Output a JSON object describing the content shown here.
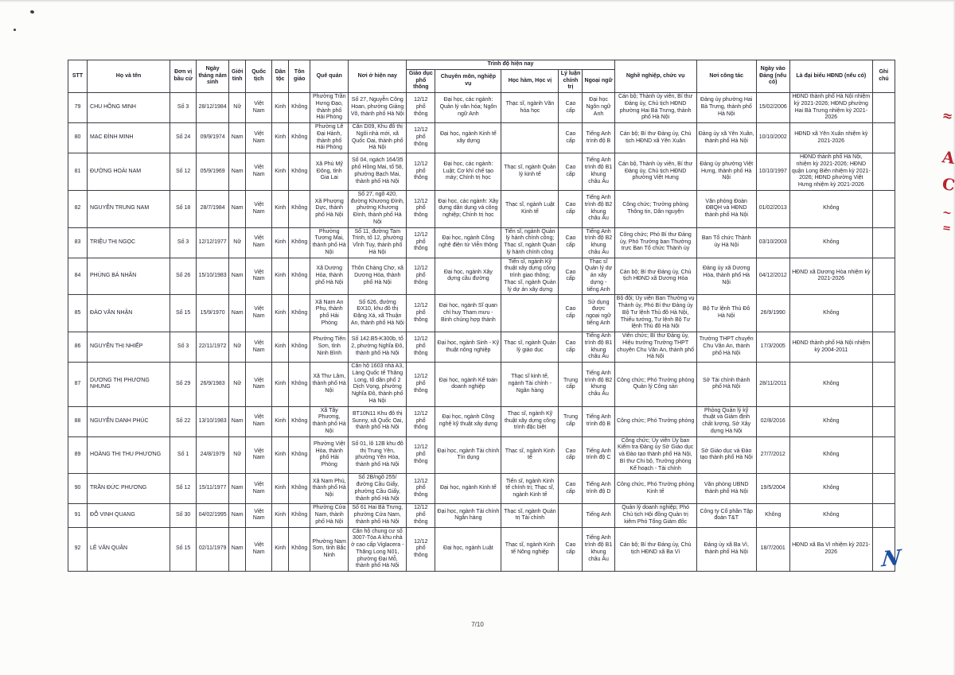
{
  "page": {
    "number": "7/10"
  },
  "annotations": {
    "red_edge_marks": [
      "≈",
      "A",
      "C",
      "~",
      "="
    ],
    "blue_initial": "N"
  },
  "table": {
    "header": {
      "stt": "STT",
      "name": "Họ và tên",
      "unit": "Đơn vị bầu cử",
      "dob": "Ngày tháng năm sinh",
      "gender": "Giới tính",
      "nationality": "Quốc tịch",
      "ethnicity": "Dân tộc",
      "religion": "Tôn giáo",
      "hometown": "Quê quán",
      "residence": "Nơi ở hiện nay",
      "qualification_group": "Trình độ hiện nay",
      "education": "Giáo dục phổ thông",
      "professional": "Chuyên môn, nghiệp vụ",
      "degree": "Học hàm, Học vị",
      "politics": "Lý luận chính trị",
      "language": "Ngoại ngữ",
      "occupation": "Nghề nghiệp, chức vụ",
      "workplace": "Nơi công tác",
      "party_date": "Ngày vào Đảng (nếu có)",
      "council": "Là đại biểu HĐND (nếu có)",
      "note": "Ghi chú"
    },
    "rows": [
      {
        "stt": "79",
        "name": "CHU HỒNG MINH",
        "unit": "Số 3",
        "dob": "28/12/1984",
        "gender": "Nữ",
        "nationality": "Việt Nam",
        "ethnicity": "Kinh",
        "religion": "Không",
        "hometown": "Phường Trần Hưng Đạo, thành phố Hải Phòng",
        "residence": "Số 27, Nguyễn Công Hoan, phường Giảng Võ, thành phố Hà Nội",
        "education": "12/12 phổ thông",
        "professional": "Đại học, các ngành: Quản lý văn hóa; Ngôn ngữ Anh",
        "degree": "Thạc sĩ, ngành Văn hóa học",
        "politics": "Cao cấp",
        "language": "Đại học Ngôn ngữ Anh",
        "occupation": "Cán bộ; Thành ủy viên, Bí thư Đảng ủy, Chủ tịch HĐND phường Hai Bà Trưng, thành phố Hà Nội",
        "workplace": "Đảng ủy phường Hai Bà Trưng, thành phố Hà Nội",
        "party_date": "15/02/2006",
        "council": "HĐND thành phố Hà Nội nhiệm kỳ 2021-2026; HĐND phường Hai Bà Trưng nhiệm kỳ 2021-2026",
        "note": ""
      },
      {
        "stt": "80",
        "name": "MẠC ĐÌNH MINH",
        "unit": "Số 24",
        "dob": "09/9/1974",
        "gender": "Nam",
        "nationality": "Việt Nam",
        "ethnicity": "Kinh",
        "religion": "Không",
        "hometown": "Phường Lê Đại Hành, thành phố Hải Phòng",
        "residence": "Căn D09, Khu đô thị Ngôi nhà mới, xã Quốc Oai, thành phố Hà Nội",
        "education": "12/12 phổ thông",
        "professional": "Đại học, ngành Kinh tế xây dựng",
        "degree": "",
        "politics": "Cao cấp",
        "language": "Tiếng Anh trình độ B",
        "occupation": "Cán bộ; Bí thư Đảng ủy, Chủ tịch HĐND xã Yên Xuân",
        "workplace": "Đảng ủy xã Yên Xuân, thành phố Hà Nội",
        "party_date": "10/10/2002",
        "council": "HĐND xã Yên Xuân nhiệm kỳ 2021-2026",
        "note": ""
      },
      {
        "stt": "81",
        "name": "ĐƯỜNG HOÀI NAM",
        "unit": "Số 12",
        "dob": "05/9/1969",
        "gender": "Nam",
        "nationality": "Việt Nam",
        "ethnicity": "Kinh",
        "religion": "Không",
        "hometown": "Xã Phù Mỹ Đông, tỉnh Gia Lai",
        "residence": "Số 04, ngách 164/35 phố Hồng Mai, tổ 58, phường Bạch Mai, thành phố Hà Nội",
        "education": "12/12 phổ thông",
        "professional": "Đại học, các ngành: Luật; Cơ khí chế tạo máy; Chính trị học",
        "degree": "Thạc sĩ, ngành Quản lý kinh tế",
        "politics": "Cao cấp",
        "language": "Tiếng Anh trình độ B1 khung châu Âu",
        "occupation": "Cán bộ, Thành ủy viên, Bí thư Đảng ủy, Chủ tịch HĐND phường Việt Hưng",
        "workplace": "Đảng ủy phường Việt Hưng, thành phố Hà Nội",
        "party_date": "10/10/1997",
        "council": "HĐND thành phố Hà Nội, nhiệm kỳ 2021-2026; HĐND quận Long Biên nhiệm kỳ 2021-2026; HĐND phường Việt Hưng nhiệm kỳ 2021-2026",
        "note": ""
      },
      {
        "stt": "82",
        "name": "NGUYỄN TRUNG NAM",
        "unit": "Số 18",
        "dob": "28/7/1984",
        "gender": "Nam",
        "nationality": "Việt Nam",
        "ethnicity": "Kinh",
        "religion": "Không",
        "hometown": "Xã Phượng Dực, thành phố Hà Nội",
        "residence": "Số 27, ngõ 420, đường Khương Đình, phường Khương Đình, thành phố Hà Nội",
        "education": "12/12 phổ thông",
        "professional": "Đại học, các ngành: Xây dựng dân dụng và công nghiệp; Chính trị học",
        "degree": "Thạc sĩ, ngành Luật Kinh tế",
        "politics": "Cao cấp",
        "language": "Tiếng Anh trình độ B2 khung châu Âu",
        "occupation": "Công chức; Trưởng phòng Thông tin, Dân nguyện",
        "workplace": "Văn phòng Đoàn ĐBQH và HĐND thành phố Hà Nội",
        "party_date": "01/02/2013",
        "council": "Không",
        "note": ""
      },
      {
        "stt": "83",
        "name": "TRIỆU THỊ NGỌC",
        "unit": "Số 3",
        "dob": "12/12/1977",
        "gender": "Nữ",
        "nationality": "Việt Nam",
        "ethnicity": "Kinh",
        "religion": "Không",
        "hometown": "Phường Tương Mai, thành phố Hà Nội",
        "residence": "Số 11, đường Tam Trinh, tổ 12, phường Vĩnh Tuy, thành phố Hà Nội",
        "education": "12/12 phổ thông",
        "professional": "Đại học, ngành Công nghệ điện tử Viễn thông",
        "degree": "Tiến sĩ, ngành Quản lý hành chính công; Thạc sĩ, ngành Quản lý hành chính công",
        "politics": "Cao cấp",
        "language": "Tiếng Anh trình độ B2 khung châu Âu",
        "occupation": "Công chức; Phó Bí thư Đảng ủy, Phó Trưởng ban Thường trực Ban Tổ chức Thành ủy",
        "workplace": "Ban Tổ chức Thành ủy Hà Nội",
        "party_date": "03/10/2003",
        "council": "Không",
        "note": ""
      },
      {
        "stt": "84",
        "name": "PHÙNG BÁ NHÂN",
        "unit": "Số 26",
        "dob": "15/10/1983",
        "gender": "Nam",
        "nationality": "Việt Nam",
        "ethnicity": "Kinh",
        "religion": "Không",
        "hometown": "Xã Dương Hòa, thành phố Hà Nội",
        "residence": "Thôn Chàng Chợ, xã Dương Hòa, thành phố Hà Nội",
        "education": "12/12 phổ thông",
        "professional": "Đại học, ngành Xây dựng cầu đường",
        "degree": "Tiến sĩ, ngành Kỹ thuật xây dựng công trình giao thông; Thạc sĩ, ngành Quản lý dự án xây dựng",
        "politics": "Cao cấp",
        "language": "Thạc sĩ Quản lý dự án xây dựng - tiếng Anh",
        "occupation": "Cán bộ; Bí thư Đảng ủy, Chủ tịch HĐND xã Dương Hòa",
        "workplace": "Đảng ủy xã Dương Hòa, thành phố Hà Nội",
        "party_date": "04/12/2012",
        "council": "HĐND xã Dương Hòa nhiệm kỳ 2021-2026",
        "note": ""
      },
      {
        "stt": "85",
        "name": "ĐÀO VĂN NHẬN",
        "unit": "Số 15",
        "dob": "15/9/1970",
        "gender": "Nam",
        "nationality": "Việt Nam",
        "ethnicity": "Kinh",
        "religion": "Không",
        "hometown": "Xã Nam An Phụ, thành phố Hải Phòng",
        "residence": "Số 626, đường ĐX10, khu đô thị Đặng Xá, xã Thuận An, thành phố Hà Nội",
        "education": "12/12 phổ thông",
        "professional": "Đại học, ngành Sĩ quan chỉ huy Tham mưu - Binh chủng hợp thành",
        "degree": "",
        "politics": "Cao cấp",
        "language": "Sử dụng được ngoại ngữ tiếng Anh",
        "occupation": "Bộ đội; Ủy viên Ban Thường vụ Thành ủy, Phó Bí thư Đảng ủy Bộ Tư lệnh Thủ đô Hà Nội, Thiếu tướng, Tư lệnh Bộ Tư lệnh Thủ đô Hà Nội",
        "workplace": "Bộ Tư lệnh Thủ Đô Hà Nội",
        "party_date": "26/9/1990",
        "council": "Không",
        "note": ""
      },
      {
        "stt": "86",
        "name": "NGUYỄN THỊ NHIẾP",
        "unit": "Số 3",
        "dob": "22/11/1972",
        "gender": "Nữ",
        "nationality": "Việt Nam",
        "ethnicity": "Kinh",
        "religion": "Không",
        "hometown": "Phường Tiên Sơn, tỉnh Ninh Bình",
        "residence": "Số 142.B5-K300b, tổ 2, phường Nghĩa Đô, thành phố Hà Nội",
        "education": "12/12 phổ thông",
        "professional": "Đại học, ngành Sinh - Kỹ thuật nông nghiệp",
        "degree": "Thạc sĩ, ngành Quản lý giáo dục",
        "politics": "Cao cấp",
        "language": "Tiếng Anh trình độ B1 khung châu Âu",
        "occupation": "Viên chức; Bí thư Đảng ủy, Hiệu trưởng Trường THPT chuyên Chu Văn An, thành phố Hà Nội",
        "workplace": "Trường THPT chuyên Chu Văn An, thành phố Hà Nội",
        "party_date": "17/3/2005",
        "council": "HĐND thành phố Hà Nội nhiệm kỳ 2004-2011",
        "note": ""
      },
      {
        "stt": "87",
        "name": "DƯƠNG THỊ PHƯƠNG NHUNG",
        "unit": "Số 29",
        "dob": "26/9/1983",
        "gender": "Nữ",
        "nationality": "Việt Nam",
        "ethnicity": "Kinh",
        "religion": "Không",
        "hometown": "Xã Thư Lâm, thành phố Hà Nội",
        "residence": "Căn hộ 1603 nhà A3, Làng Quốc tế Thăng Long, tổ dân phố 2 Dịch Vọng, phường Nghĩa Đô, thành phố Hà Nội",
        "education": "12/12 phổ thông",
        "professional": "Đại học, ngành Kế toán doanh nghiệp",
        "degree": "Thạc sĩ kinh tế, ngành Tài chính -Ngân hàng",
        "politics": "Trung cấp",
        "language": "Tiếng Anh trình độ B2 khung châu Âu",
        "occupation": "Công chức; Phó Trưởng phòng Quản lý Công sản",
        "workplace": "Sở Tài chính thành phố Hà Nội",
        "party_date": "28/11/2011",
        "council": "Không",
        "note": ""
      },
      {
        "stt": "88",
        "name": "NGUYỄN DANH PHÚC",
        "unit": "Số 22",
        "dob": "13/10/1983",
        "gender": "Nam",
        "nationality": "Việt Nam",
        "ethnicity": "Kinh",
        "religion": "Không",
        "hometown": "Xã Tây Phương, thành phố Hà Nội",
        "residence": "BT10N11 Khu đô thị Sunny, xã Quốc Oai, thành phố Hà Nội",
        "education": "12/12 phổ thông",
        "professional": "Đại học, ngành Công nghệ kỹ thuật xây dựng",
        "degree": "Thạc sĩ, ngành Kỹ thuật xây dựng công trình đặc biệt",
        "politics": "Trung cấp",
        "language": "Tiếng Anh trình độ B",
        "occupation": "Công chức; Phó Trưởng phòng",
        "workplace": "Phòng Quản lý kỹ thuật và Giám định chất lượng, Sở Xây dựng Hà Nội",
        "party_date": "02/8/2016",
        "council": "Không",
        "note": ""
      },
      {
        "stt": "89",
        "name": "HOÀNG THỊ THU PHƯƠNG",
        "unit": "Số 1",
        "dob": "24/8/1979",
        "gender": "Nữ",
        "nationality": "Việt Nam",
        "ethnicity": "Kinh",
        "religion": "Không",
        "hometown": "Phường Việt Hòa, thành phố Hải Phòng",
        "residence": "Số 01, lô 12B khu đô thị Trung Yên, phường Yên Hòa, thành phố Hà Nội",
        "education": "12/12 phổ thông",
        "professional": "Đại học, ngành Tài chính Tín dụng",
        "degree": "Thạc sĩ, ngành Kinh tế",
        "politics": "Cao cấp",
        "language": "Tiếng Anh trình độ C",
        "occupation": "Công chức; Ủy viên Ủy ban Kiểm tra Đảng ủy Sở Giáo dục và Đào tạo thành phố Hà Nội, Bí thư Chi bộ, Trưởng phòng Kế hoạch - Tài chính",
        "workplace": "Sở Giáo dục và Đào tạo thành phố Hà Nội",
        "party_date": "27/7/2012",
        "council": "Không",
        "note": ""
      },
      {
        "stt": "90",
        "name": "TRẦN ĐỨC PHƯƠNG",
        "unit": "Số 12",
        "dob": "15/11/1977",
        "gender": "Nam",
        "nationality": "Việt Nam",
        "ethnicity": "Kinh",
        "religion": "Không",
        "hometown": "Xã Nam Phù, thành phố Hà Nội",
        "residence": "Số 2B/ngõ 255/ đường Cầu Giấy, phường Cầu Giấy, thành phố Hà Nội",
        "education": "12/12 phổ thông",
        "professional": "Đại học, ngành Kinh tế",
        "degree": "Tiến sĩ, ngành Kinh tế chính trị; Thạc sĩ, ngành Kinh tế",
        "politics": "Cao cấp",
        "language": "Tiếng Anh trình độ D",
        "occupation": "Công chức, Phó Trưởng phòng Kinh tế",
        "workplace": "Văn phòng UBND thành phố Hà Nội",
        "party_date": "19/5/2004",
        "council": "Không",
        "note": ""
      },
      {
        "stt": "91",
        "name": "ĐỖ VINH QUANG",
        "unit": "Số 30",
        "dob": "04/02/1995",
        "gender": "Nam",
        "nationality": "Việt Nam",
        "ethnicity": "Kinh",
        "religion": "Không",
        "hometown": "Phường Cửa Nam, thành phố Hà Nội",
        "residence": "Số 61 Hai Bà Trưng, phường Cửa Nam, thành phố Hà Nội",
        "education": "12/12 phổ thông",
        "professional": "Đại học, ngành Tài chính Ngân hàng",
        "degree": "Thạc sĩ, ngành Quản trị Tài chính",
        "politics": "",
        "language": "Tiếng Anh",
        "occupation": "Quản lý doanh nghiệp; Phó Chủ tịch Hội đồng Quản trị kiêm Phó Tổng Giám đốc",
        "workplace": "Công ty Cổ phần Tập đoàn T&T",
        "party_date": "Không",
        "council": "Không",
        "note": ""
      },
      {
        "stt": "92",
        "name": "LÊ VĂN QUÂN",
        "unit": "Số 15",
        "dob": "02/11/1979",
        "gender": "Nam",
        "nationality": "Việt Nam",
        "ethnicity": "Kinh",
        "religion": "Không",
        "hometown": "Phường Nam Sơn, tỉnh Bắc Ninh",
        "residence": "Căn hộ chung cư số 3007-Tòa A khu nhà ở cao cấp Viglacera - Thăng Long N01, phường Đại Mỗ, thành phố Hà Nội",
        "education": "12/12 phổ thông",
        "professional": "Đại học, ngành Luật",
        "degree": "Thạc sĩ, ngành Kinh tế Nông nghiệp",
        "politics": "Cao cấp",
        "language": "Tiếng Anh trình độ B1 khung châu Âu",
        "occupation": "Cán bộ; Bí thư Đảng ủy, Chủ tịch HĐND xã Ba Vì",
        "workplace": "Đảng ủy xã Ba Vì, thành phố Hà Nội",
        "party_date": "18/7/2001",
        "council": "HĐND xã Ba Vì nhiệm kỳ 2021-2026",
        "note": ""
      }
    ]
  }
}
